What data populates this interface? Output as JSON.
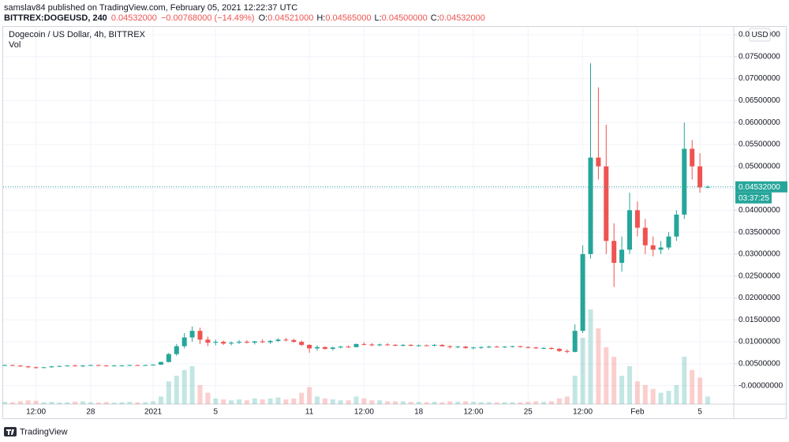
{
  "header": {
    "published": "samslav84 published on TradingView.com, February 05, 2021 12:22:37 UTC",
    "symbol": "BITTREX:DOGEUSD, 240",
    "last": "0.04532000",
    "change": "−0.00768000 (−14.49%)",
    "o_label": "O:",
    "o": "0.04521000",
    "h_label": "H:",
    "h": "0.04565000",
    "l_label": "L:",
    "l": "0.04500000",
    "c_label": "C:",
    "c": "0.04532000"
  },
  "footer": {
    "brand": "TradingView"
  },
  "chart_data": {
    "type": "candlestick",
    "title": "Dogecoin / US Dollar, 4h, BITTREX",
    "volume_label": "Vol",
    "currency": "USD",
    "up_color": "#26a69a",
    "down_color": "#ef5350",
    "grid": true,
    "current_price": {
      "value": 0.04532,
      "label": "0.04532000"
    },
    "countdown": "03:37:25",
    "ylim": [
      -0.0042,
      0.0818
    ],
    "yticks": [
      {
        "value": 0,
        "label": "-0.00000000"
      },
      {
        "value": 0.005,
        "label": "0.00500000"
      },
      {
        "value": 0.01,
        "label": "0.01000000"
      },
      {
        "value": 0.015,
        "label": "0.01500000"
      },
      {
        "value": 0.02,
        "label": "0.02000000"
      },
      {
        "value": 0.025,
        "label": "0.02500000"
      },
      {
        "value": 0.03,
        "label": "0.03000000"
      },
      {
        "value": 0.035,
        "label": "0.03500000"
      },
      {
        "value": 0.04,
        "label": "0.04000000"
      },
      {
        "value": 0.045,
        "label": "0.04500000"
      },
      {
        "value": 0.05,
        "label": "0.05000000"
      },
      {
        "value": 0.055,
        "label": "0.05500000"
      },
      {
        "value": 0.06,
        "label": "0.06000000"
      },
      {
        "value": 0.065,
        "label": "0.06500000"
      },
      {
        "value": 0.07,
        "label": "0.07000000"
      },
      {
        "value": 0.075,
        "label": "0.07500000"
      },
      {
        "value": 0.08,
        "label": "0.08000000"
      }
    ],
    "categories": [
      null,
      null,
      null,
      null,
      "12:00",
      null,
      null,
      null,
      null,
      null,
      null,
      "28",
      null,
      null,
      null,
      null,
      null,
      null,
      null,
      "2021",
      null,
      null,
      null,
      null,
      null,
      null,
      null,
      "5",
      null,
      null,
      null,
      null,
      null,
      null,
      null,
      null,
      null,
      null,
      null,
      "11",
      null,
      null,
      null,
      null,
      null,
      null,
      "12:00",
      null,
      null,
      null,
      null,
      null,
      null,
      "18",
      null,
      null,
      null,
      null,
      null,
      null,
      "12:00",
      null,
      null,
      null,
      null,
      null,
      null,
      "25",
      null,
      null,
      null,
      null,
      null,
      null,
      "12:00",
      null,
      null,
      null,
      null,
      null,
      null,
      "Feb",
      null,
      null,
      null,
      null,
      null,
      null,
      null,
      "5",
      null
    ],
    "open": [
      0.0046,
      0.0047,
      0.0046,
      0.0044,
      0.0042,
      0.0041,
      0.0042,
      0.0044,
      0.0045,
      0.0046,
      0.0045,
      0.0046,
      0.0047,
      0.0046,
      0.0045,
      0.0046,
      0.0046,
      0.0047,
      0.0046,
      0.0047,
      0.0048,
      0.0054,
      0.0072,
      0.009,
      0.011,
      0.0125,
      0.0105,
      0.0098,
      0.01,
      0.0096,
      0.0098,
      0.01,
      0.0098,
      0.0101,
      0.0099,
      0.0102,
      0.0105,
      0.0104,
      0.01,
      0.0093,
      0.0085,
      0.0088,
      0.0084,
      0.0087,
      0.0089,
      0.0088,
      0.0095,
      0.0094,
      0.0092,
      0.0094,
      0.0093,
      0.0092,
      0.0093,
      0.0091,
      0.0092,
      0.0091,
      0.0093,
      0.009,
      0.0088,
      0.0089,
      0.0086,
      0.0087,
      0.0088,
      0.0089,
      0.0088,
      0.0089,
      0.009,
      0.0088,
      0.0087,
      0.0085,
      0.0086,
      0.0084,
      0.0079,
      0.0077,
      0.0125,
      0.03,
      0.052,
      0.05,
      0.033,
      0.028,
      0.031,
      0.04,
      0.036,
      0.032,
      0.031,
      0.0315,
      0.034,
      0.039,
      0.054,
      0.05,
      0.04521
    ],
    "high": [
      0.0048,
      0.0048,
      0.0047,
      0.0045,
      0.0044,
      0.0043,
      0.0045,
      0.0046,
      0.0047,
      0.0048,
      0.0047,
      0.0048,
      0.0048,
      0.0047,
      0.0047,
      0.0047,
      0.0048,
      0.0048,
      0.0048,
      0.0049,
      0.0055,
      0.0075,
      0.0095,
      0.012,
      0.0135,
      0.0132,
      0.0112,
      0.0105,
      0.0103,
      0.0101,
      0.0104,
      0.0104,
      0.0102,
      0.0106,
      0.0104,
      0.0108,
      0.0109,
      0.0107,
      0.0103,
      0.0095,
      0.0092,
      0.009,
      0.0089,
      0.0091,
      0.0092,
      0.0096,
      0.0099,
      0.0097,
      0.0096,
      0.0097,
      0.0095,
      0.0095,
      0.0095,
      0.0094,
      0.0094,
      0.0095,
      0.0095,
      0.0092,
      0.0091,
      0.0091,
      0.0089,
      0.009,
      0.0091,
      0.0091,
      0.009,
      0.0091,
      0.0091,
      0.009,
      0.0089,
      0.0088,
      0.0088,
      0.0086,
      0.0083,
      0.014,
      0.032,
      0.0735,
      0.068,
      0.0595,
      0.037,
      0.034,
      0.044,
      0.042,
      0.038,
      0.034,
      0.033,
      0.035,
      0.04,
      0.06,
      0.056,
      0.053,
      0.04565
    ],
    "low": [
      0.0045,
      0.0045,
      0.0043,
      0.004,
      0.0039,
      0.004,
      0.0041,
      0.0043,
      0.0044,
      0.0044,
      0.0042,
      0.0045,
      0.0045,
      0.0044,
      0.0044,
      0.0045,
      0.0045,
      0.0045,
      0.0045,
      0.0046,
      0.0047,
      0.0053,
      0.0068,
      0.0085,
      0.01,
      0.0095,
      0.009,
      0.0092,
      0.0093,
      0.0092,
      0.0095,
      0.0096,
      0.0094,
      0.0097,
      0.0095,
      0.01,
      0.0101,
      0.0098,
      0.009,
      0.0075,
      0.008,
      0.0082,
      0.008,
      0.0085,
      0.0086,
      0.0087,
      0.0092,
      0.009,
      0.009,
      0.0091,
      0.009,
      0.0089,
      0.009,
      0.0089,
      0.009,
      0.009,
      0.0089,
      0.0085,
      0.0086,
      0.0084,
      0.0083,
      0.0084,
      0.0086,
      0.0087,
      0.0086,
      0.0087,
      0.0087,
      0.0085,
      0.0084,
      0.0083,
      0.0082,
      0.0077,
      0.0074,
      0.0076,
      0.012,
      0.029,
      0.047,
      0.03,
      0.0225,
      0.026,
      0.03,
      0.034,
      0.03,
      0.0295,
      0.03,
      0.031,
      0.033,
      0.038,
      0.047,
      0.044,
      0.045
    ],
    "close": [
      0.0047,
      0.0046,
      0.0044,
      0.0042,
      0.0041,
      0.0042,
      0.0044,
      0.0045,
      0.0046,
      0.0045,
      0.0046,
      0.0047,
      0.0046,
      0.0045,
      0.0046,
      0.0046,
      0.0047,
      0.0046,
      0.0047,
      0.0048,
      0.0054,
      0.0072,
      0.009,
      0.011,
      0.0125,
      0.0105,
      0.0098,
      0.01,
      0.0096,
      0.0098,
      0.01,
      0.0098,
      0.0101,
      0.0099,
      0.0102,
      0.0105,
      0.0104,
      0.01,
      0.0093,
      0.0085,
      0.0088,
      0.0084,
      0.0087,
      0.0089,
      0.0088,
      0.0095,
      0.0094,
      0.0092,
      0.0094,
      0.0093,
      0.0092,
      0.0093,
      0.0091,
      0.0092,
      0.0091,
      0.0093,
      0.009,
      0.0088,
      0.0089,
      0.0086,
      0.0087,
      0.0088,
      0.0089,
      0.0088,
      0.0089,
      0.009,
      0.0088,
      0.0087,
      0.0085,
      0.0086,
      0.0084,
      0.0079,
      0.0077,
      0.0125,
      0.03,
      0.052,
      0.05,
      0.033,
      0.028,
      0.031,
      0.04,
      0.036,
      0.032,
      0.031,
      0.0315,
      0.034,
      0.039,
      0.054,
      0.05,
      0.0452,
      0.04532
    ],
    "volume": [
      1.2,
      1,
      1.5,
      2,
      1.8,
      1,
      1.2,
      0.8,
      1,
      1.3,
      1.5,
      1,
      0.9,
      1.1,
      0.8,
      1,
      1.2,
      0.9,
      1,
      1.5,
      4,
      12,
      15,
      18,
      20,
      10,
      6,
      3,
      2.5,
      2,
      2.5,
      2,
      3,
      2.5,
      3,
      3.5,
      2.5,
      3,
      6,
      9,
      4,
      3,
      2.5,
      2,
      2,
      4,
      3,
      2,
      2,
      1.5,
      1.5,
      1.5,
      1.2,
      1.2,
      1,
      1.2,
      1,
      1.5,
      1.3,
      1.5,
      1.2,
      1,
      1,
      0.9,
      1,
      1,
      1,
      1.2,
      1.5,
      1.2,
      1.5,
      3,
      4,
      15,
      35,
      50,
      40,
      30,
      25,
      15,
      20,
      12,
      10,
      8,
      6,
      7,
      10,
      25,
      18,
      14,
      4
    ]
  }
}
